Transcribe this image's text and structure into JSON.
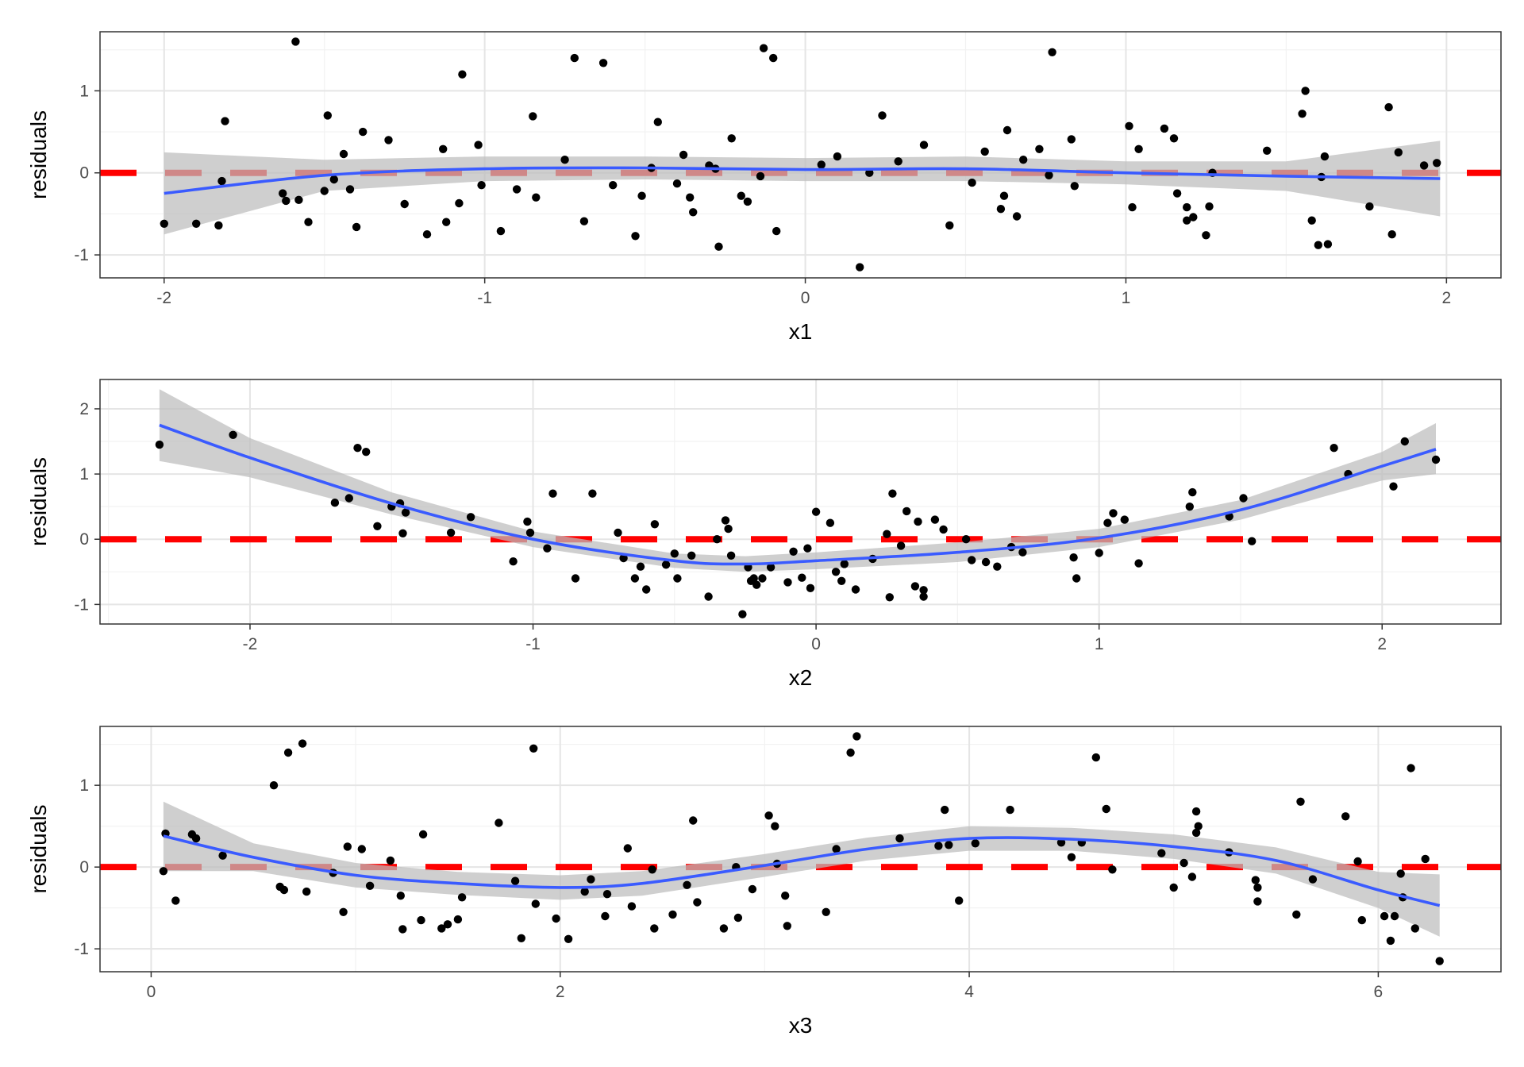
{
  "colors": {
    "points": "#000000",
    "smooth_line": "#3a5bff",
    "ribbon": "#bdbdbd",
    "reference_line": "#ff0000",
    "grid_major": "#e5e5e5",
    "grid_minor": "#f2f2f2",
    "panel_border": "#333333",
    "tick_text": "#4d4d4d"
  },
  "chart_data": [
    {
      "type": "scatter",
      "xlabel": "x1",
      "ylabel": "residuals",
      "xlim": [
        -2.2,
        2.17
      ],
      "ylim": [
        -1.28,
        1.72
      ],
      "x_ticks": [
        -2,
        -1,
        0,
        1,
        2
      ],
      "x_tick_labels": [
        "-2",
        "-1",
        "0",
        "1",
        "2"
      ],
      "y_ticks": [
        -1,
        0,
        1
      ],
      "y_tick_labels": [
        "-1",
        "0",
        "1"
      ],
      "grid": true,
      "reference_line": {
        "y": 0,
        "style": "dashed"
      },
      "points": [
        [
          -2.0,
          -0.62
        ],
        [
          -1.9,
          -0.62
        ],
        [
          -1.83,
          -0.64
        ],
        [
          -1.82,
          -0.1
        ],
        [
          -1.81,
          0.63
        ],
        [
          -1.63,
          -0.25
        ],
        [
          -1.62,
          -0.34
        ],
        [
          -1.59,
          1.6
        ],
        [
          -1.58,
          -0.33
        ],
        [
          -1.55,
          -0.6
        ],
        [
          -1.5,
          -0.22
        ],
        [
          -1.49,
          0.7
        ],
        [
          -1.47,
          -0.08
        ],
        [
          -1.44,
          0.23
        ],
        [
          -1.42,
          -0.2
        ],
        [
          -1.4,
          -0.66
        ],
        [
          -1.38,
          0.5
        ],
        [
          -1.3,
          0.4
        ],
        [
          -1.25,
          -0.38
        ],
        [
          -1.18,
          -0.75
        ],
        [
          -1.13,
          0.29
        ],
        [
          -1.12,
          -0.6
        ],
        [
          -1.08,
          -0.37
        ],
        [
          -1.07,
          1.2
        ],
        [
          -1.02,
          0.34
        ],
        [
          -1.01,
          -0.15
        ],
        [
          -0.95,
          -0.71
        ],
        [
          -0.9,
          -0.2
        ],
        [
          -0.85,
          0.69
        ],
        [
          -0.84,
          -0.3
        ],
        [
          -0.75,
          0.16
        ],
        [
          -0.72,
          1.4
        ],
        [
          -0.69,
          -0.59
        ],
        [
          -0.63,
          1.34
        ],
        [
          -0.6,
          -0.15
        ],
        [
          -0.53,
          -0.77
        ],
        [
          -0.51,
          -0.28
        ],
        [
          -0.48,
          0.06
        ],
        [
          -0.46,
          0.62
        ],
        [
          -0.4,
          -0.13
        ],
        [
          -0.38,
          0.22
        ],
        [
          -0.36,
          -0.3
        ],
        [
          -0.35,
          -0.48
        ],
        [
          -0.3,
          0.09
        ],
        [
          -0.28,
          0.05
        ],
        [
          -0.27,
          -0.9
        ],
        [
          -0.23,
          0.42
        ],
        [
          -0.2,
          -0.28
        ],
        [
          -0.18,
          -0.35
        ],
        [
          -0.14,
          -0.04
        ],
        [
          -0.13,
          1.52
        ],
        [
          -0.1,
          1.4
        ],
        [
          -0.09,
          -0.71
        ],
        [
          0.05,
          0.1
        ],
        [
          0.1,
          0.2
        ],
        [
          0.17,
          -1.15
        ],
        [
          0.2,
          0.0
        ],
        [
          0.24,
          0.7
        ],
        [
          0.29,
          0.14
        ],
        [
          0.37,
          0.34
        ],
        [
          0.45,
          -0.64
        ],
        [
          0.52,
          -0.12
        ],
        [
          0.56,
          0.26
        ],
        [
          0.61,
          -0.44
        ],
        [
          0.62,
          -0.28
        ],
        [
          0.63,
          0.52
        ],
        [
          0.66,
          -0.53
        ],
        [
          0.68,
          0.16
        ],
        [
          0.73,
          0.29
        ],
        [
          0.76,
          -0.03
        ],
        [
          0.77,
          1.47
        ],
        [
          0.83,
          0.41
        ],
        [
          0.84,
          -0.16
        ],
        [
          1.01,
          0.57
        ],
        [
          1.02,
          -0.42
        ],
        [
          1.04,
          0.29
        ],
        [
          1.12,
          0.54
        ],
        [
          1.15,
          0.42
        ],
        [
          1.16,
          -0.25
        ],
        [
          1.19,
          -0.58
        ],
        [
          1.19,
          -0.42
        ],
        [
          1.21,
          -0.54
        ],
        [
          1.25,
          -0.76
        ],
        [
          1.26,
          -0.41
        ],
        [
          1.27,
          0.0
        ],
        [
          1.44,
          0.27
        ],
        [
          1.55,
          0.72
        ],
        [
          1.56,
          1.0
        ],
        [
          1.58,
          -0.58
        ],
        [
          1.6,
          -0.88
        ],
        [
          1.61,
          -0.05
        ],
        [
          1.62,
          0.2
        ],
        [
          1.63,
          -0.87
        ],
        [
          1.76,
          -0.41
        ],
        [
          1.82,
          0.8
        ],
        [
          1.83,
          -0.75
        ],
        [
          1.85,
          0.25
        ],
        [
          1.93,
          0.09
        ],
        [
          1.97,
          0.12
        ]
      ],
      "smooth": {
        "x": [
          -2.0,
          -1.5,
          -1.0,
          -0.5,
          0.0,
          0.5,
          1.0,
          1.5,
          1.98
        ],
        "y": [
          -0.25,
          -0.03,
          0.05,
          0.06,
          0.04,
          0.05,
          0.0,
          -0.04,
          -0.07
        ],
        "lower": [
          -0.75,
          -0.22,
          -0.1,
          -0.08,
          -0.1,
          -0.1,
          -0.14,
          -0.22,
          -0.53
        ],
        "upper": [
          0.25,
          0.16,
          0.2,
          0.2,
          0.18,
          0.2,
          0.14,
          0.14,
          0.39
        ]
      }
    },
    {
      "type": "scatter",
      "xlabel": "x2",
      "ylabel": "residuals",
      "xlim": [
        -2.53,
        2.42
      ],
      "ylim": [
        -1.3,
        2.45
      ],
      "x_ticks": [
        -2,
        -1,
        0,
        1,
        2
      ],
      "x_tick_labels": [
        "-2",
        "-1",
        "0",
        "1",
        "2"
      ],
      "y_ticks": [
        -1,
        0,
        1,
        2
      ],
      "y_tick_labels": [
        "-1",
        "0",
        "1",
        "2"
      ],
      "grid": true,
      "reference_line": {
        "y": 0,
        "style": "dashed"
      },
      "points": [
        [
          -2.32,
          1.45
        ],
        [
          -2.06,
          1.6
        ],
        [
          -1.7,
          0.56
        ],
        [
          -1.65,
          0.63
        ],
        [
          -1.62,
          1.4
        ],
        [
          -1.59,
          1.34
        ],
        [
          -1.55,
          0.2
        ],
        [
          -1.5,
          0.5
        ],
        [
          -1.47,
          0.55
        ],
        [
          -1.46,
          0.09
        ],
        [
          -1.45,
          0.41
        ],
        [
          -1.29,
          0.1
        ],
        [
          -1.22,
          0.34
        ],
        [
          -1.07,
          -0.34
        ],
        [
          -1.02,
          0.27
        ],
        [
          -1.01,
          0.1
        ],
        [
          -0.95,
          -0.14
        ],
        [
          -0.93,
          0.7
        ],
        [
          -0.85,
          -0.6
        ],
        [
          -0.79,
          0.7
        ],
        [
          -0.7,
          0.1
        ],
        [
          -0.68,
          -0.29
        ],
        [
          -0.64,
          -0.6
        ],
        [
          -0.62,
          -0.42
        ],
        [
          -0.6,
          -0.77
        ],
        [
          -0.57,
          0.23
        ],
        [
          -0.53,
          -0.39
        ],
        [
          -0.5,
          -0.22
        ],
        [
          -0.49,
          -0.6
        ],
        [
          -0.44,
          -0.25
        ],
        [
          -0.38,
          -0.88
        ],
        [
          -0.35,
          0.0
        ],
        [
          -0.32,
          0.29
        ],
        [
          -0.31,
          0.16
        ],
        [
          -0.3,
          -0.25
        ],
        [
          -0.26,
          -1.15
        ],
        [
          -0.24,
          -0.43
        ],
        [
          -0.23,
          -0.64
        ],
        [
          -0.22,
          -0.6
        ],
        [
          -0.21,
          -0.7
        ],
        [
          -0.19,
          -0.6
        ],
        [
          -0.16,
          -0.43
        ],
        [
          -0.1,
          -0.66
        ],
        [
          -0.08,
          -0.19
        ],
        [
          -0.05,
          -0.59
        ],
        [
          -0.03,
          -0.14
        ],
        [
          -0.02,
          -0.75
        ],
        [
          0.0,
          0.42
        ],
        [
          0.05,
          0.25
        ],
        [
          0.07,
          -0.5
        ],
        [
          0.09,
          -0.64
        ],
        [
          0.1,
          -0.38
        ],
        [
          0.14,
          -0.77
        ],
        [
          0.2,
          -0.3
        ],
        [
          0.25,
          0.08
        ],
        [
          0.26,
          -0.89
        ],
        [
          0.27,
          0.7
        ],
        [
          0.3,
          -0.1
        ],
        [
          0.32,
          0.43
        ],
        [
          0.35,
          -0.72
        ],
        [
          0.36,
          0.27
        ],
        [
          0.38,
          -0.78
        ],
        [
          0.38,
          -0.88
        ],
        [
          0.42,
          0.3
        ],
        [
          0.45,
          0.15
        ],
        [
          0.53,
          0.0
        ],
        [
          0.55,
          -0.32
        ],
        [
          0.6,
          -0.35
        ],
        [
          0.64,
          -0.42
        ],
        [
          0.69,
          -0.12
        ],
        [
          0.73,
          -0.2
        ],
        [
          0.91,
          -0.28
        ],
        [
          0.92,
          -0.6
        ],
        [
          1.0,
          -0.21
        ],
        [
          1.03,
          0.25
        ],
        [
          1.05,
          0.4
        ],
        [
          1.09,
          0.3
        ],
        [
          1.14,
          -0.37
        ],
        [
          1.32,
          0.5
        ],
        [
          1.33,
          0.72
        ],
        [
          1.46,
          0.35
        ],
        [
          1.51,
          0.63
        ],
        [
          1.54,
          -0.03
        ],
        [
          1.83,
          1.4
        ],
        [
          1.88,
          1.0
        ],
        [
          2.04,
          0.81
        ],
        [
          2.08,
          1.5
        ],
        [
          2.19,
          1.22
        ]
      ],
      "smooth": {
        "x": [
          -2.32,
          -2.0,
          -1.5,
          -1.0,
          -0.5,
          -0.25,
          0.0,
          0.5,
          1.0,
          1.5,
          2.0,
          2.19
        ],
        "y": [
          1.75,
          1.25,
          0.55,
          0.0,
          -0.33,
          -0.38,
          -0.33,
          -0.2,
          0.02,
          0.45,
          1.12,
          1.38
        ],
        "lower": [
          1.2,
          0.95,
          0.38,
          -0.12,
          -0.44,
          -0.5,
          -0.46,
          -0.35,
          -0.12,
          0.3,
          0.9,
          1.0
        ],
        "upper": [
          2.3,
          1.55,
          0.72,
          0.12,
          -0.22,
          -0.26,
          -0.2,
          -0.05,
          0.16,
          0.6,
          1.34,
          1.78
        ]
      }
    },
    {
      "type": "scatter",
      "xlabel": "x3",
      "ylabel": "residuals",
      "xlim": [
        -0.25,
        6.6
      ],
      "ylim": [
        -1.28,
        1.72
      ],
      "x_ticks": [
        0,
        2,
        4,
        6
      ],
      "x_tick_labels": [
        "0",
        "2",
        "4",
        "6"
      ],
      "y_ticks": [
        -1,
        0,
        1
      ],
      "y_tick_labels": [
        "-1",
        "0",
        "1"
      ],
      "grid": true,
      "reference_line": {
        "y": 0,
        "style": "dashed"
      },
      "points": [
        [
          0.06,
          -0.05
        ],
        [
          0.07,
          0.41
        ],
        [
          0.12,
          -0.41
        ],
        [
          0.2,
          0.4
        ],
        [
          0.22,
          0.35
        ],
        [
          0.35,
          0.14
        ],
        [
          0.6,
          1.0
        ],
        [
          0.63,
          -0.24
        ],
        [
          0.65,
          -0.28
        ],
        [
          0.67,
          1.4
        ],
        [
          0.74,
          1.51
        ],
        [
          0.76,
          -0.3
        ],
        [
          0.89,
          -0.07
        ],
        [
          0.94,
          -0.55
        ],
        [
          0.96,
          0.25
        ],
        [
          1.03,
          0.22
        ],
        [
          1.07,
          -0.23
        ],
        [
          1.17,
          0.08
        ],
        [
          1.22,
          -0.35
        ],
        [
          1.23,
          -0.76
        ],
        [
          1.32,
          -0.65
        ],
        [
          1.33,
          0.4
        ],
        [
          1.42,
          -0.75
        ],
        [
          1.45,
          -0.7
        ],
        [
          1.5,
          -0.64
        ],
        [
          1.52,
          -0.37
        ],
        [
          1.7,
          0.54
        ],
        [
          1.78,
          -0.17
        ],
        [
          1.81,
          -0.87
        ],
        [
          1.87,
          1.45
        ],
        [
          1.88,
          -0.45
        ],
        [
          1.98,
          -0.63
        ],
        [
          2.04,
          -0.88
        ],
        [
          2.12,
          -0.3
        ],
        [
          2.15,
          -0.15
        ],
        [
          2.22,
          -0.6
        ],
        [
          2.23,
          -0.33
        ],
        [
          2.33,
          0.23
        ],
        [
          2.35,
          -0.48
        ],
        [
          2.45,
          -0.03
        ],
        [
          2.46,
          -0.75
        ],
        [
          2.55,
          -0.58
        ],
        [
          2.62,
          -0.22
        ],
        [
          2.65,
          0.57
        ],
        [
          2.67,
          -0.43
        ],
        [
          2.8,
          -0.75
        ],
        [
          2.86,
          0.0
        ],
        [
          2.87,
          -0.62
        ],
        [
          2.94,
          -0.27
        ],
        [
          3.02,
          0.63
        ],
        [
          3.05,
          0.5
        ],
        [
          3.06,
          0.04
        ],
        [
          3.1,
          -0.35
        ],
        [
          3.11,
          -0.72
        ],
        [
          3.3,
          -0.55
        ],
        [
          3.35,
          0.22
        ],
        [
          3.42,
          1.4
        ],
        [
          3.45,
          1.6
        ],
        [
          3.66,
          0.35
        ],
        [
          3.85,
          0.26
        ],
        [
          3.88,
          0.7
        ],
        [
          3.9,
          0.27
        ],
        [
          3.95,
          -0.41
        ],
        [
          4.03,
          0.29
        ],
        [
          4.2,
          0.7
        ],
        [
          4.45,
          0.3
        ],
        [
          4.5,
          0.12
        ],
        [
          4.55,
          0.3
        ],
        [
          4.62,
          1.34
        ],
        [
          4.67,
          0.71
        ],
        [
          4.7,
          -0.03
        ],
        [
          4.94,
          0.17
        ],
        [
          5.0,
          -0.25
        ],
        [
          5.05,
          0.05
        ],
        [
          5.09,
          -0.12
        ],
        [
          5.11,
          0.68
        ],
        [
          5.11,
          0.42
        ],
        [
          5.12,
          0.5
        ],
        [
          5.27,
          0.18
        ],
        [
          5.4,
          -0.16
        ],
        [
          5.41,
          -0.42
        ],
        [
          5.41,
          -0.25
        ],
        [
          5.6,
          -0.58
        ],
        [
          5.62,
          0.8
        ],
        [
          5.68,
          -0.15
        ],
        [
          5.84,
          0.62
        ],
        [
          5.9,
          0.07
        ],
        [
          5.92,
          -0.65
        ],
        [
          6.03,
          -0.6
        ],
        [
          6.06,
          -0.9
        ],
        [
          6.08,
          -0.6
        ],
        [
          6.11,
          -0.08
        ],
        [
          6.12,
          -0.37
        ],
        [
          6.16,
          1.21
        ],
        [
          6.18,
          -0.75
        ],
        [
          6.23,
          0.1
        ],
        [
          6.3,
          -1.15
        ]
      ],
      "smooth": {
        "x": [
          0.06,
          0.5,
          1.0,
          1.5,
          2.0,
          2.4,
          3.0,
          3.5,
          4.0,
          4.5,
          5.0,
          5.5,
          6.0,
          6.3
        ],
        "y": [
          0.38,
          0.12,
          -0.1,
          -0.2,
          -0.25,
          -0.2,
          0.02,
          0.22,
          0.35,
          0.34,
          0.25,
          0.08,
          -0.28,
          -0.47
        ],
        "lower": [
          -0.05,
          -0.05,
          -0.25,
          -0.34,
          -0.4,
          -0.35,
          -0.12,
          0.08,
          0.2,
          0.2,
          0.1,
          -0.08,
          -0.5,
          -0.85
        ],
        "upper": [
          0.8,
          0.29,
          0.05,
          -0.06,
          -0.1,
          -0.05,
          0.16,
          0.36,
          0.5,
          0.48,
          0.4,
          0.24,
          -0.06,
          -0.09
        ]
      }
    }
  ]
}
